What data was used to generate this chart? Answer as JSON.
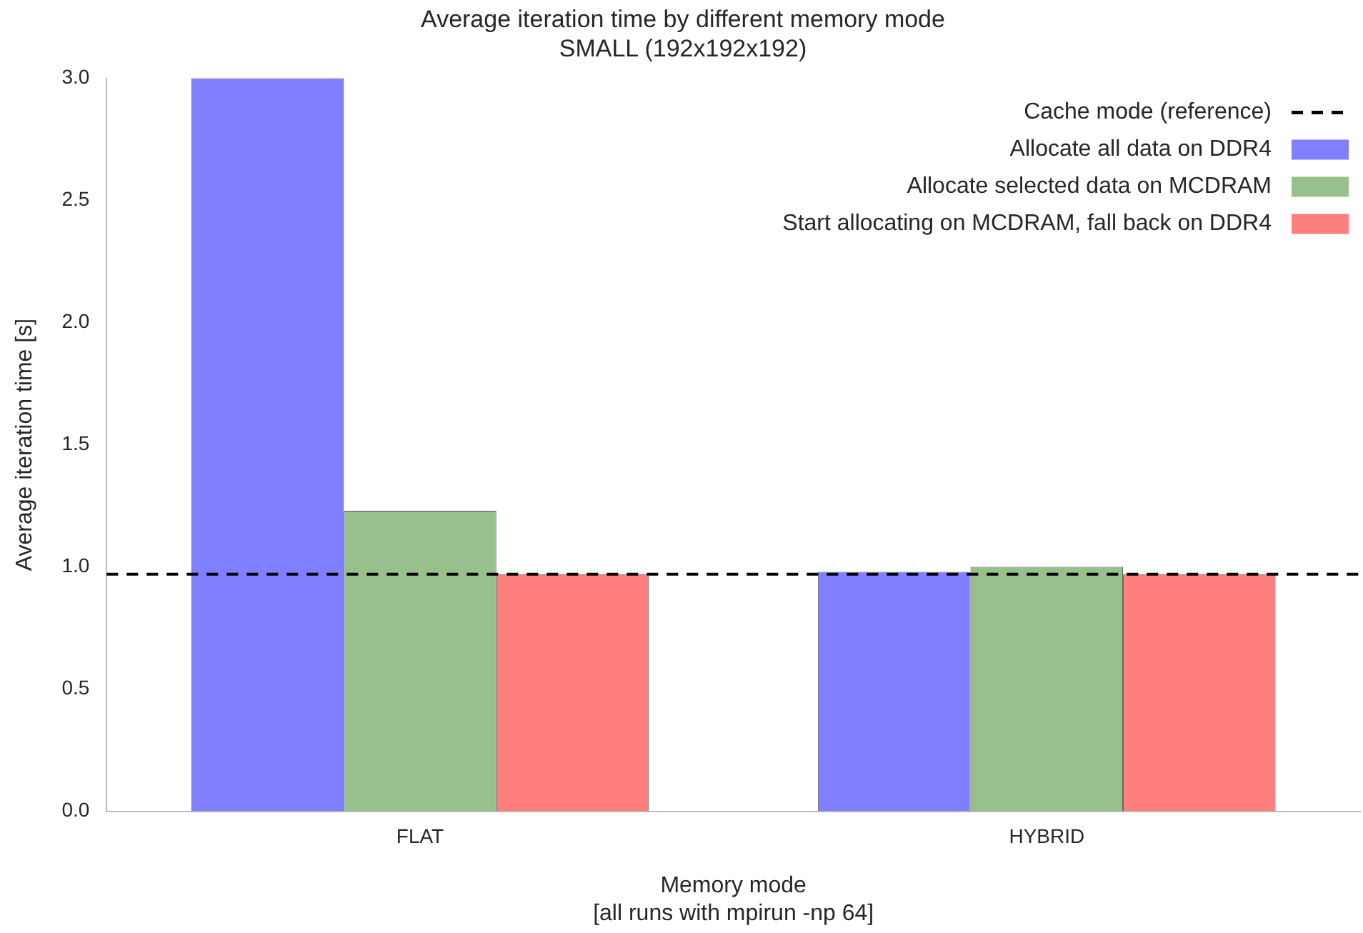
{
  "chart_data": {
    "type": "bar",
    "title": "Average iteration time by different memory mode",
    "subtitle": "SMALL (192x192x192)",
    "xlabel": "Memory mode\n[all runs with mpirun -np 64]",
    "ylabel": "Average iteration time [s]",
    "categories": [
      "FLAT",
      "HYBRID"
    ],
    "series": [
      {
        "name": "Allocate all data on DDR4",
        "color": "#7f7fff",
        "values": [
          3.0,
          0.98
        ]
      },
      {
        "name": "Allocate selected data on MCDRAM",
        "color": "#97c08c",
        "values": [
          1.23,
          1.0
        ]
      },
      {
        "name": "Start allocating on MCDRAM, fall back on DDR4",
        "color": "#ff7f7f",
        "values": [
          0.97,
          0.97
        ]
      }
    ],
    "ylim": [
      0,
      3
    ],
    "yticks": [
      {
        "value": 0,
        "label": "0.0"
      },
      {
        "value": 0.5,
        "label": "0.5"
      },
      {
        "value": 1,
        "label": "1.0"
      },
      {
        "value": 1.5,
        "label": "1.5"
      },
      {
        "value": 2,
        "label": "2.0"
      },
      {
        "value": 2.5,
        "label": "2.5"
      },
      {
        "value": 3,
        "label": "3.0"
      }
    ],
    "ref_lines": [
      {
        "axis": "y",
        "value": 0.97,
        "label": "Cache mode (reference)",
        "color": "#000000",
        "line_style": "dashed"
      }
    ],
    "grid": false,
    "legend": "top right"
  }
}
